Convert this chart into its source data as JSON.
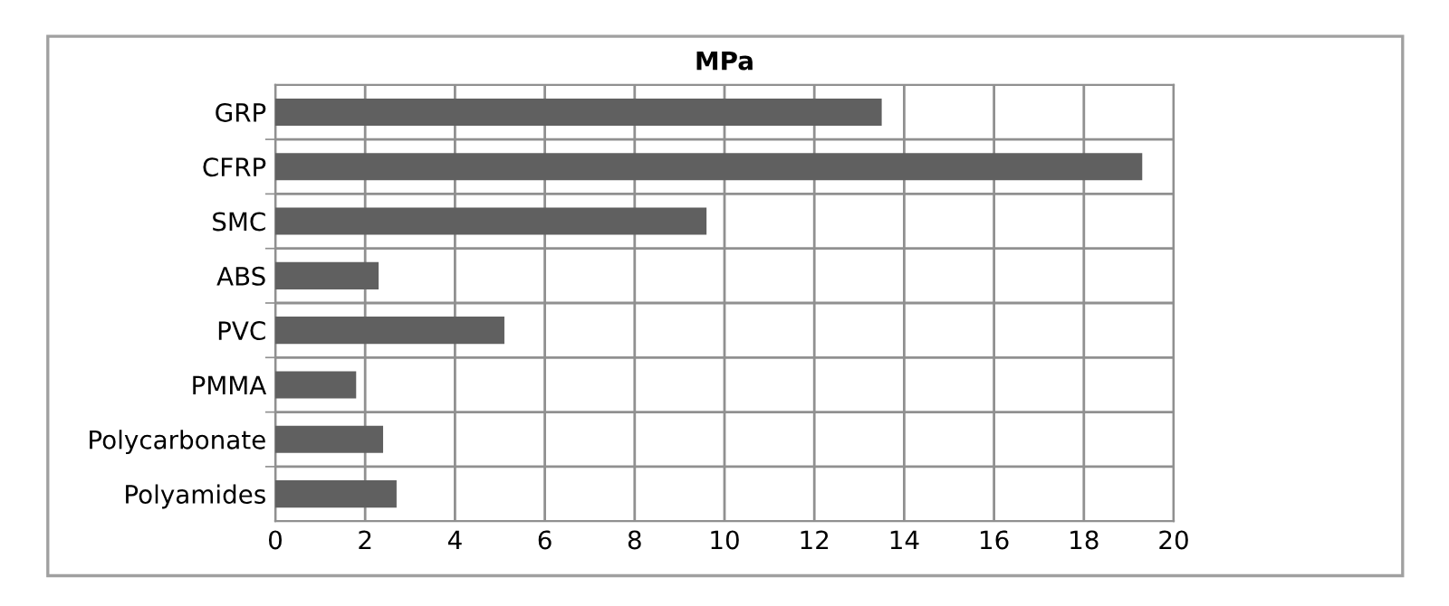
{
  "chart_data": {
    "type": "bar",
    "orientation": "horizontal",
    "title": "MPa",
    "categories": [
      "GRP",
      "CFRP",
      "SMC",
      "ABS",
      "PVC",
      "PMMA",
      "Polycarbonate",
      "Polyamides"
    ],
    "values": [
      13.5,
      19.3,
      9.6,
      2.3,
      5.1,
      1.8,
      2.4,
      2.7
    ],
    "color": "#606060",
    "xlim": [
      0,
      20
    ],
    "xticks": [
      0,
      2,
      4,
      6,
      8,
      10,
      12,
      14,
      16,
      18,
      20
    ],
    "grid": true,
    "legend": false
  }
}
